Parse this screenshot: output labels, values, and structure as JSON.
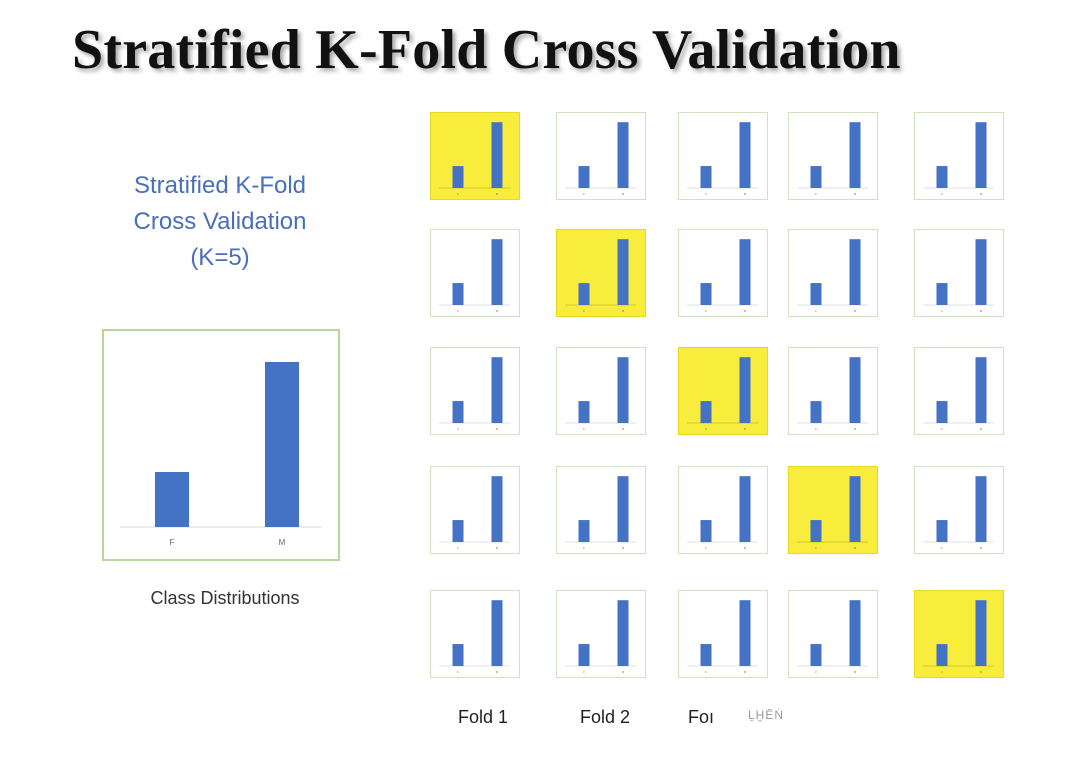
{
  "title": "Stratified K-Fold Cross Validation",
  "subtitle_lines": [
    "Stratified K-Fold",
    "Cross Validation",
    "(K=5)"
  ],
  "class_distribution_caption": "Class Distributions",
  "colors": {
    "bar": "#4472c4",
    "test_fold_highlight": "#f8ec3c",
    "chart_border": "#b5d79a",
    "subtitle_text": "#4a6fb8"
  },
  "fold_labels": [
    "Fold 1",
    "Fold 2",
    "Foı"
  ],
  "fold_label_garble": "ḺḪĒṄ",
  "chart_data": [
    {
      "type": "bar",
      "title": "",
      "categories": [
        "F",
        "M"
      ],
      "values": [
        1,
        3
      ],
      "ylim": [
        0,
        3.2
      ],
      "caption": "Class Distributions",
      "grid": false
    },
    {
      "type": "table",
      "description": "5x5 grid of mini bar charts (F vs M). Rows = iterations, columns = folds. Highlighted cell = test fold.",
      "rows": 5,
      "cols": 5,
      "mini_values": [
        1,
        3
      ],
      "test_fold_per_row": [
        1,
        2,
        3,
        4,
        5
      ]
    }
  ]
}
